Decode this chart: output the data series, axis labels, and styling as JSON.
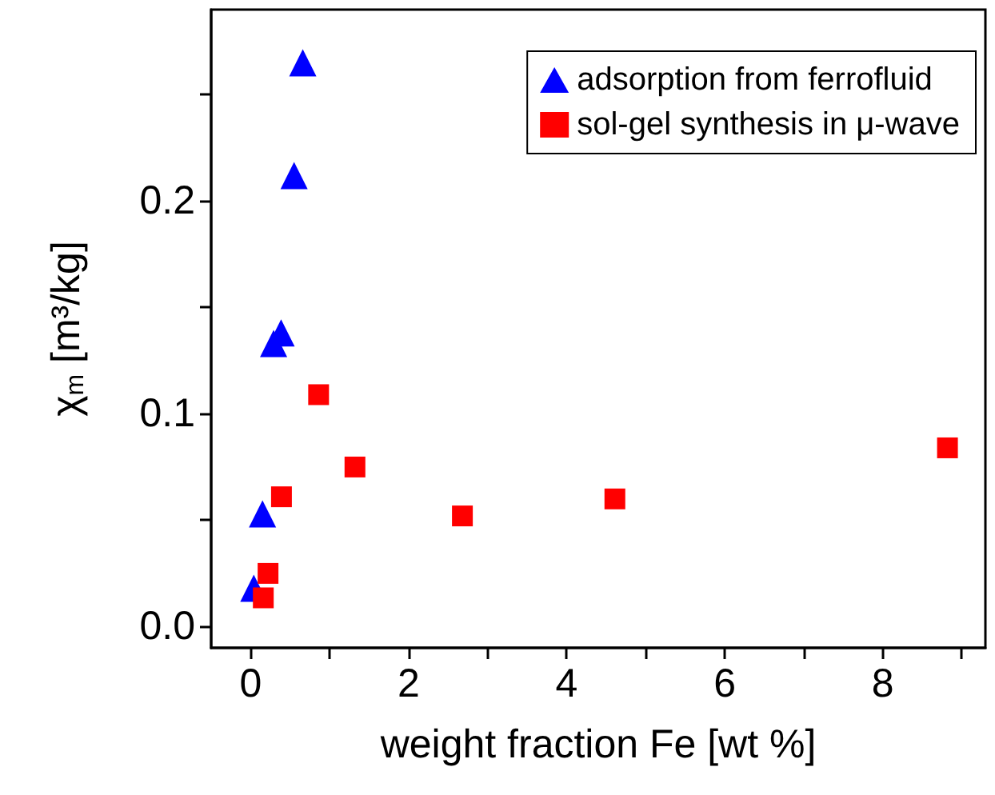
{
  "chart_data": {
    "type": "scatter",
    "xlabel": "weight fraction Fe [wt %]",
    "ylabel": "χ$_{m}$ [m³/kg]",
    "xlim": [
      -0.5,
      9.3
    ],
    "xticks": [
      0,
      {
        "value": 1,
        "label": null
      },
      2,
      {
        "value": 3,
        "label": null
      },
      4,
      {
        "value": 5,
        "label": null
      },
      6,
      {
        "value": 7,
        "label": null
      },
      8,
      {
        "value": 9,
        "label": null
      }
    ],
    "ylim": [
      -0.01,
      0.29
    ],
    "yticks": [
      {
        "value": 0,
        "label": "0.0"
      },
      {
        "value": 0.05,
        "label": null
      },
      {
        "value": 0.1,
        "label": "0.1"
      },
      {
        "value": 0.15,
        "label": null
      },
      {
        "value": 0.2,
        "label": "0.2"
      },
      {
        "value": 0.25,
        "label": null
      }
    ],
    "grid": false,
    "legend": "top right",
    "series": [
      {
        "name": "adsorption from ferrofluid",
        "color": "#0000ff",
        "marker": "triangle",
        "x": [
          0.66,
          0.55,
          0.385,
          0.29,
          0.15,
          0.04
        ],
        "values": [
          0.265,
          0.212,
          0.138,
          0.133,
          0.053,
          0.018
        ]
      },
      {
        "name": "sol-gel synthesis in μ-wave",
        "color": "#ff0000",
        "marker": "square",
        "x": [
          0.86,
          1.32,
          0.39,
          2.68,
          0.22,
          0.16,
          4.61,
          8.82
        ],
        "values": [
          0.109,
          0.075,
          0.061,
          0.052,
          0.025,
          0.0135,
          0.06,
          0.084
        ]
      }
    ]
  }
}
